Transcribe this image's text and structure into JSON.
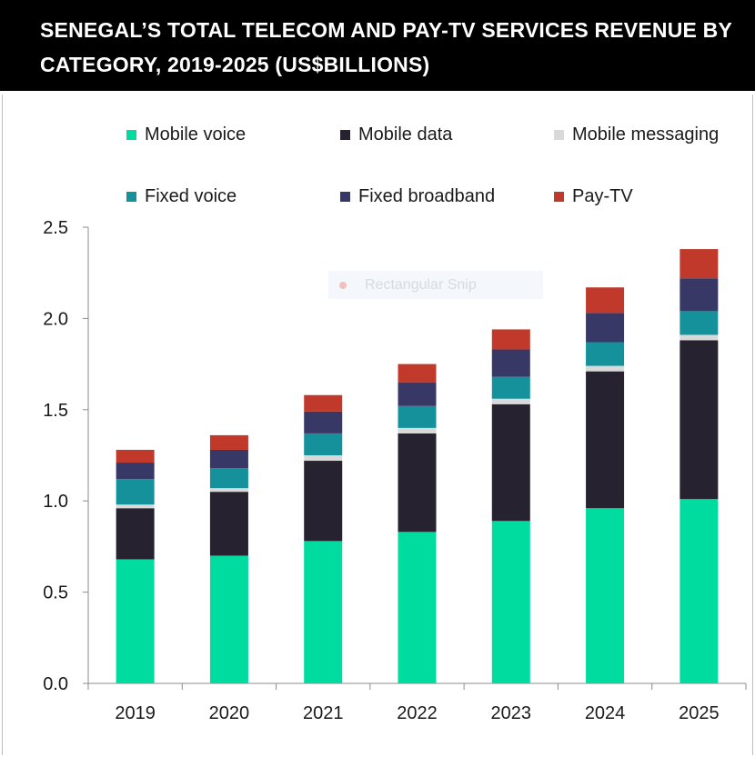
{
  "header": {
    "title_line1": "SENEGAL’S TOTAL TELECOM AND PAY-TV SERVICES REVENUE BY",
    "title_line2": "CATEGORY, 2019-2025 (US$BILLIONS)"
  },
  "overlay": {
    "snip_label": "Rectangular Snip",
    "snip_icon": "snip-dot-icon"
  },
  "legend": [
    {
      "label": "Mobile voice",
      "color": "#00dba0"
    },
    {
      "label": "Mobile data",
      "color": "#26222f"
    },
    {
      "label": "Mobile messaging",
      "color": "#d9d9d9"
    },
    {
      "label": "Fixed voice",
      "color": "#14919b"
    },
    {
      "label": "Fixed broadband",
      "color": "#383866"
    },
    {
      "label": "Pay-TV",
      "color": "#c0392b"
    }
  ],
  "chart_data": {
    "type": "bar",
    "stacked": true,
    "title": "SENEGAL’S TOTAL TELECOM AND PAY-TV SERVICES REVENUE BY CATEGORY, 2019-2025 (US$BILLIONS)",
    "categories": [
      "2019",
      "2020",
      "2021",
      "2022",
      "2023",
      "2024",
      "2025"
    ],
    "series": [
      {
        "name": "Mobile voice",
        "color": "#00dba0",
        "values": [
          0.68,
          0.7,
          0.78,
          0.83,
          0.89,
          0.96,
          1.01
        ]
      },
      {
        "name": "Mobile data",
        "color": "#26222f",
        "values": [
          0.28,
          0.35,
          0.44,
          0.54,
          0.64,
          0.75,
          0.87
        ]
      },
      {
        "name": "Mobile messaging",
        "color": "#d9d9d9",
        "values": [
          0.02,
          0.02,
          0.03,
          0.03,
          0.03,
          0.03,
          0.03
        ]
      },
      {
        "name": "Fixed voice",
        "color": "#14919b",
        "values": [
          0.14,
          0.11,
          0.12,
          0.12,
          0.12,
          0.13,
          0.13
        ]
      },
      {
        "name": "Fixed broadband",
        "color": "#383866",
        "values": [
          0.09,
          0.1,
          0.12,
          0.13,
          0.15,
          0.16,
          0.18
        ]
      },
      {
        "name": "Pay-TV",
        "color": "#c0392b",
        "values": [
          0.07,
          0.08,
          0.09,
          0.1,
          0.11,
          0.14,
          0.16
        ]
      }
    ],
    "xlabel": "",
    "ylabel": "",
    "ylim": [
      0,
      2.5
    ],
    "yticks": [
      "0.0",
      "0.5",
      "1.0",
      "1.5",
      "2.0",
      "2.5"
    ],
    "ytick_values": [
      0,
      0.5,
      1.0,
      1.5,
      2.0,
      2.5
    ],
    "grid": false,
    "legend_position": "top"
  }
}
